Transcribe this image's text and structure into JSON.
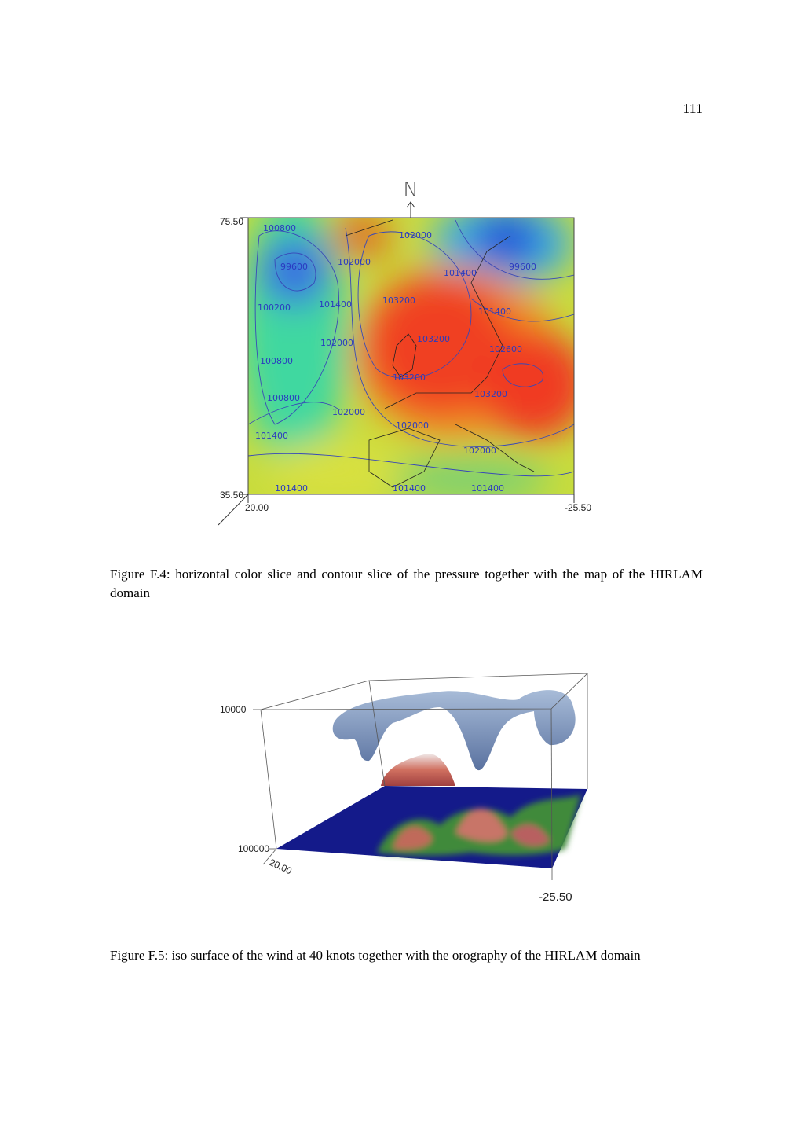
{
  "page_number": "111",
  "figures": [
    {
      "compass": "N",
      "axis_labels": {
        "y_top": "75.50",
        "y_bottom": "35.50",
        "x_left": "20.00",
        "x_right": "-25.50"
      },
      "contour_labels": [
        "100800",
        "102000",
        "99600",
        "102000",
        "101400",
        "99600",
        "100200",
        "101400",
        "103200",
        "101400",
        "102000",
        "103200",
        "102600",
        "100800",
        "103200",
        "100800",
        "103200",
        "102000",
        "102000",
        "101400",
        "102000",
        "101400",
        "101400",
        "101400"
      ],
      "caption": "Figure F.4: horizontal color slice and contour slice of the pressure together with the map of the HIRLAM domain"
    },
    {
      "axis_labels": {
        "z_top": "10000",
        "z_bottom": "100000",
        "x_left": "20.00",
        "x_right": "-25.50"
      },
      "caption": "Figure F.5: iso surface of the wind at 40 knots together with the orography of the HIRLAM domain"
    }
  ]
}
